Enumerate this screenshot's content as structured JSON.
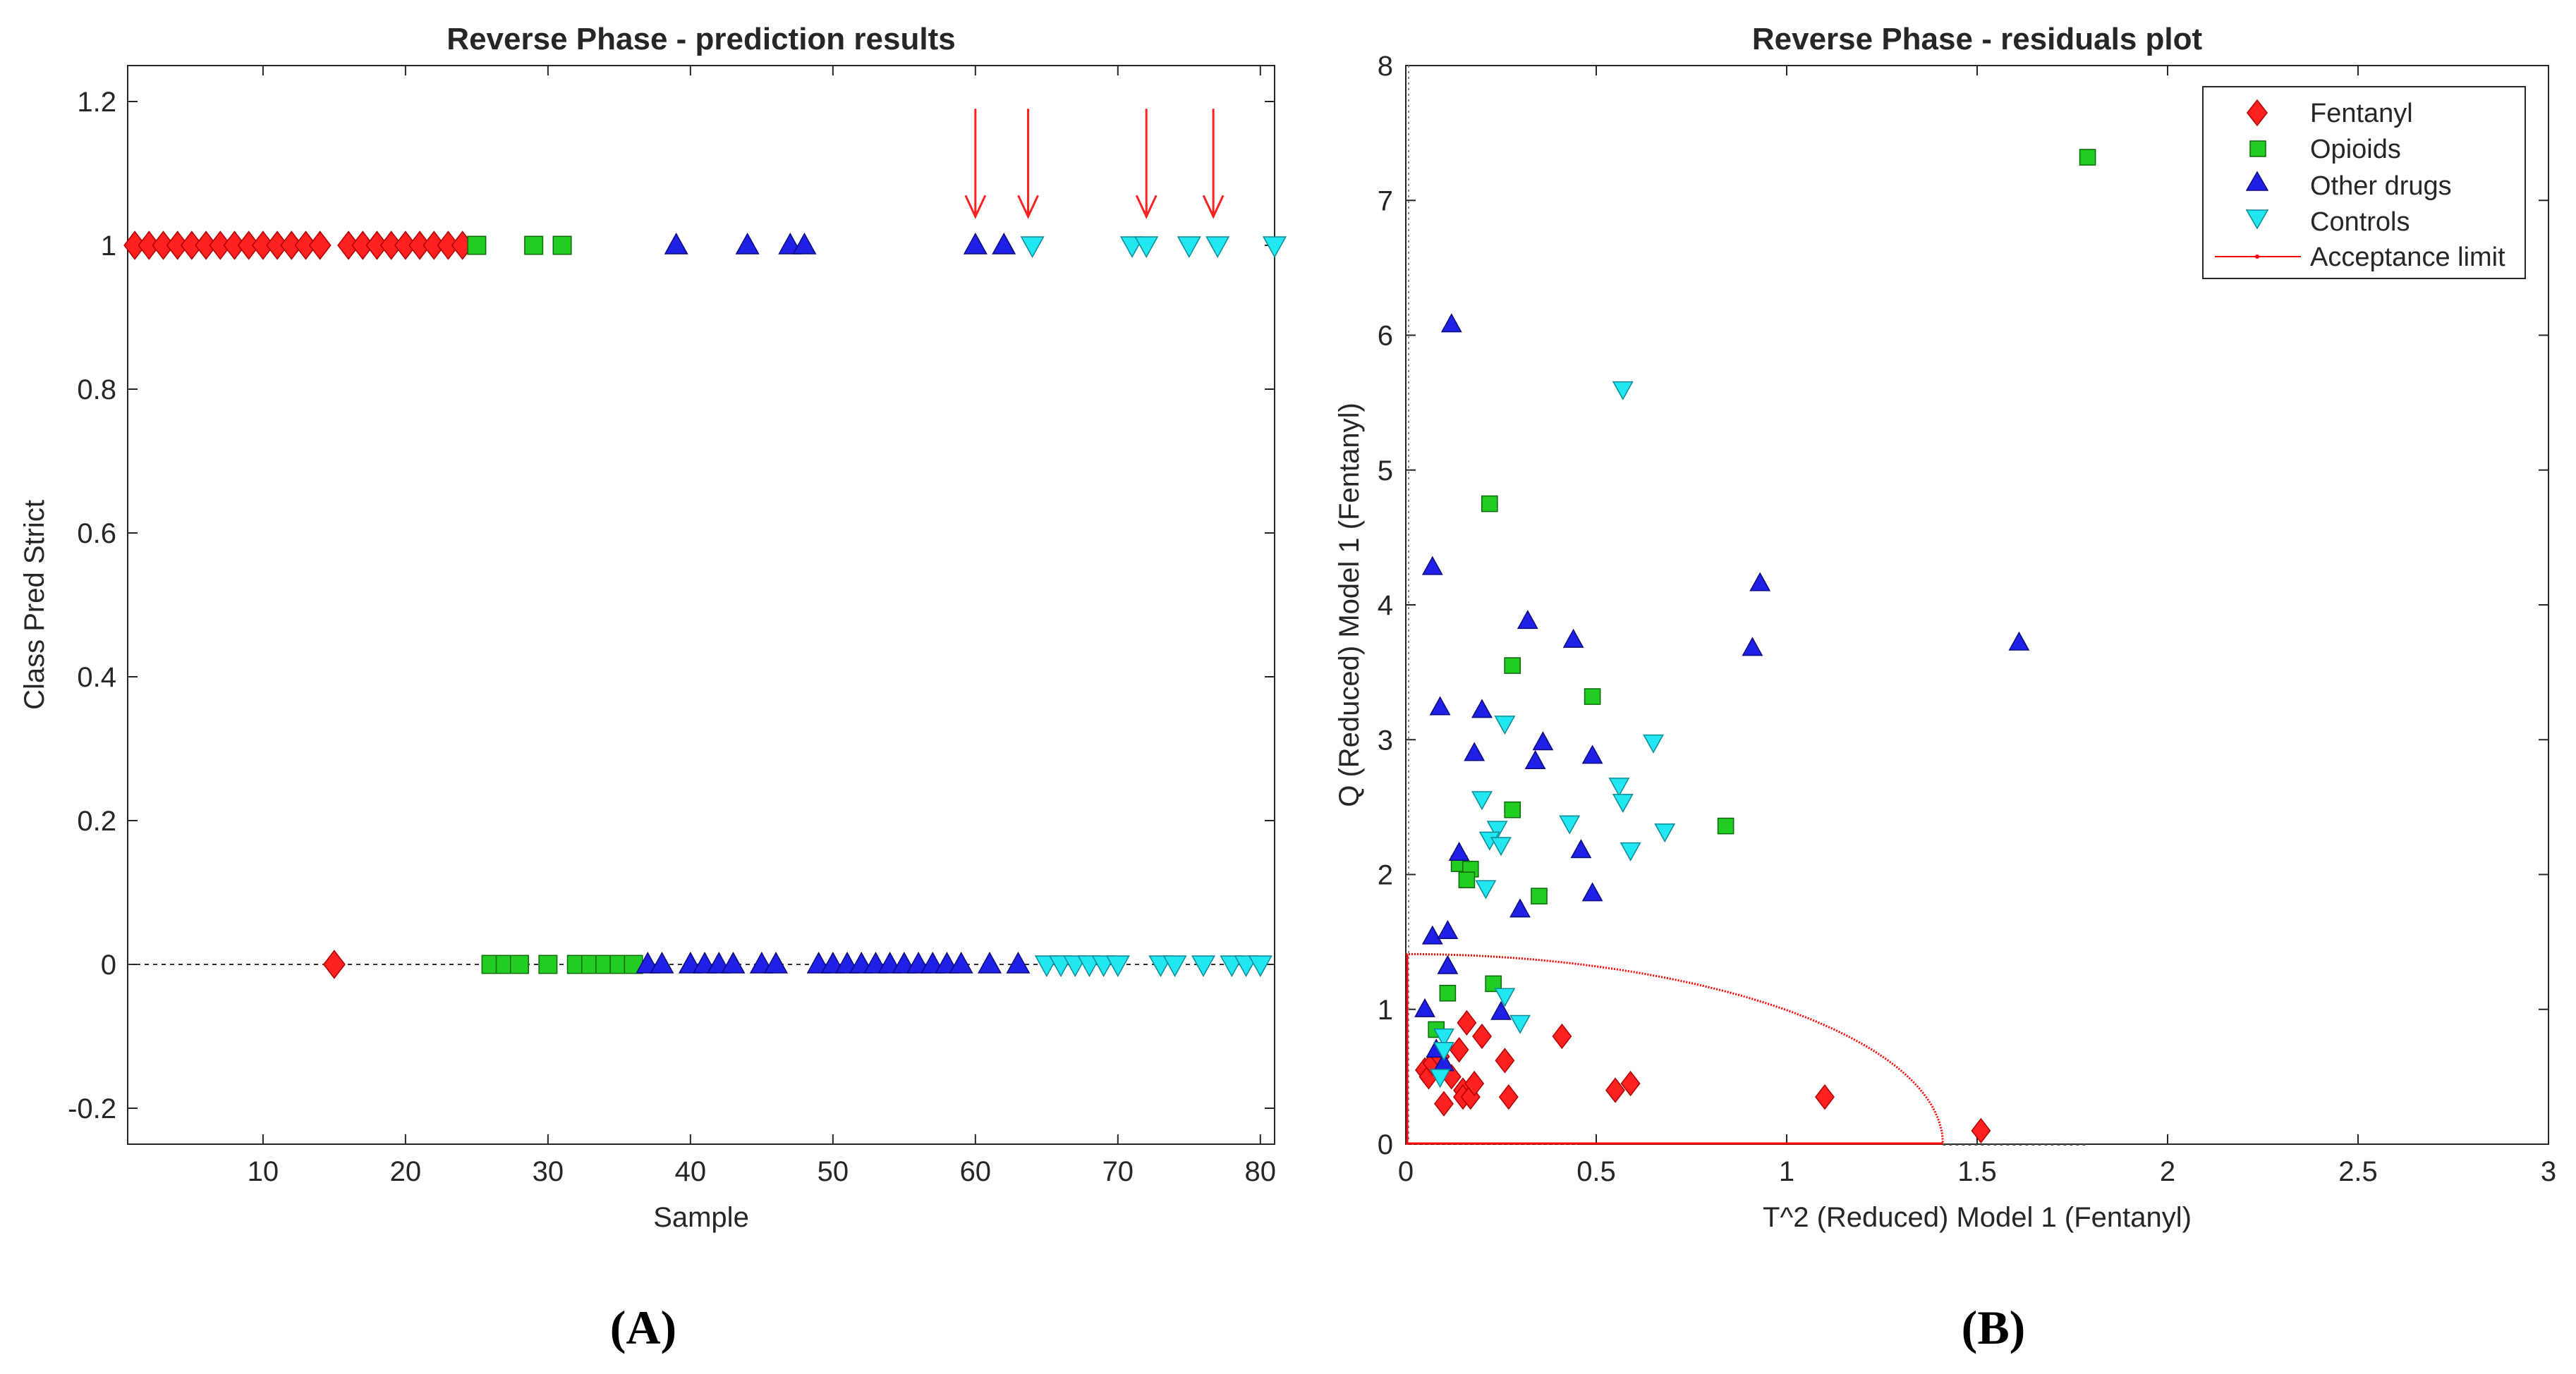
{
  "chart_data": [
    {
      "type": "scatter",
      "title": "Reverse Phase - prediction results",
      "xlabel": "Sample",
      "ylabel": "Class Pred Strict",
      "xlim": [
        0.5,
        81
      ],
      "ylim": [
        -0.25,
        1.25
      ],
      "xticks": [
        10,
        20,
        30,
        40,
        50,
        60,
        70,
        80
      ],
      "yticks": [
        -0.2,
        0,
        0.2,
        0.4,
        0.6,
        0.8,
        1,
        1.2
      ],
      "ytick_labels": [
        "-0.2",
        "0",
        "0.2",
        "0.4",
        "0.6",
        "0.8",
        "1",
        "1.2"
      ],
      "reference_line_y": 0,
      "arrows_at_samples": [
        60,
        63.7,
        72,
        76.7
      ],
      "series": [
        {
          "name": "Fentanyl",
          "marker": "diamond",
          "color": "#ff2020",
          "x": [
            1,
            2,
            3,
            4,
            5,
            6,
            7,
            8,
            9,
            10,
            11,
            12,
            13,
            14,
            15,
            16,
            17,
            18,
            19,
            20,
            21,
            22,
            23,
            24
          ],
          "y": [
            1,
            1,
            1,
            1,
            1,
            1,
            1,
            1,
            1,
            1,
            1,
            1,
            1,
            1,
            0,
            1,
            1,
            1,
            1,
            1,
            1,
            1,
            1,
            1
          ]
        },
        {
          "name": "Opioids",
          "marker": "square",
          "color": "#22cc22",
          "x": [
            25,
            26,
            27,
            28,
            29,
            30,
            31,
            32,
            33,
            34,
            35,
            36
          ],
          "y": [
            1,
            0,
            0,
            0,
            1,
            0,
            1,
            0,
            0,
            0,
            0,
            0
          ]
        },
        {
          "name": "Other drugs",
          "marker": "triangle-up",
          "color": "#1f1fe6",
          "x": [
            37,
            38,
            39,
            40,
            41,
            42,
            43,
            44,
            45,
            46,
            47,
            48,
            49,
            50,
            51,
            52,
            53,
            54,
            55,
            56,
            57,
            58,
            59,
            60,
            61,
            62,
            63
          ],
          "y": [
            0,
            0,
            1,
            0,
            0,
            0,
            0,
            1,
            0,
            0,
            1,
            1,
            0,
            0,
            0,
            0,
            0,
            0,
            0,
            0,
            0,
            0,
            0,
            1,
            0,
            1,
            0
          ]
        },
        {
          "name": "Controls",
          "marker": "triangle-down",
          "color": "#22e6f2",
          "x": [
            64,
            65,
            66,
            67,
            68,
            69,
            70,
            71,
            72,
            73,
            74,
            75,
            76,
            77,
            78,
            79,
            80,
            81
          ],
          "y": [
            1,
            0,
            0,
            0,
            0,
            0,
            0,
            1,
            1,
            0,
            0,
            1,
            0,
            1,
            0,
            0,
            0,
            1
          ]
        }
      ]
    },
    {
      "type": "scatter",
      "title": "Reverse Phase - residuals plot",
      "xlabel": "T^2 (Reduced) Model 1 (Fentanyl)",
      "ylabel": "Q (Reduced) Model 1 (Fentanyl)",
      "xlim": [
        0,
        3
      ],
      "ylim": [
        0,
        8
      ],
      "xticks": [
        0,
        0.5,
        1,
        1.5,
        2,
        2.5,
        3
      ],
      "xtick_labels": [
        "0",
        "0.5",
        "1",
        "1.5",
        "2",
        "2.5",
        "3"
      ],
      "yticks": [
        0,
        1,
        2,
        3,
        4,
        5,
        6,
        7,
        8
      ],
      "legend_position": "top-right",
      "acceptance_limit": {
        "name": "Acceptance limit",
        "color": "#ff0000",
        "x_max": 1.41,
        "y_max": 1.41
      },
      "series": [
        {
          "name": "Fentanyl",
          "marker": "diamond",
          "color": "#ff2020",
          "x": [
            0.05,
            0.06,
            0.07,
            0.1,
            0.12,
            0.14,
            0.15,
            0.15,
            0.16,
            0.17,
            0.18,
            0.2,
            0.26,
            0.27,
            0.41,
            0.55,
            0.59,
            1.1,
            1.51,
            0.09
          ],
          "y": [
            0.55,
            0.5,
            0.6,
            0.3,
            0.5,
            0.7,
            0.4,
            0.35,
            0.9,
            0.35,
            0.45,
            0.8,
            0.62,
            0.35,
            0.8,
            0.4,
            0.45,
            0.35,
            0.1,
            0.65
          ]
        },
        {
          "name": "Opioids",
          "marker": "square",
          "color": "#22cc22",
          "x": [
            1.79,
            0.22,
            0.28,
            0.49,
            0.28,
            0.14,
            0.17,
            0.16,
            0.35,
            0.84,
            0.23,
            0.11,
            0.08
          ],
          "y": [
            7.32,
            4.75,
            3.55,
            3.32,
            2.48,
            2.08,
            2.04,
            1.96,
            1.84,
            2.36,
            1.19,
            1.12,
            0.85
          ]
        },
        {
          "name": "Other drugs",
          "marker": "triangle-up",
          "color": "#1f1fe6",
          "x": [
            0.12,
            0.07,
            0.93,
            1.61,
            0.32,
            0.44,
            0.91,
            0.09,
            0.2,
            0.36,
            0.18,
            0.34,
            0.49,
            0.14,
            0.46,
            0.3,
            0.49,
            0.07,
            0.11,
            0.11,
            0.05,
            0.25,
            0.08,
            0.1
          ],
          "y": [
            6.08,
            4.28,
            4.16,
            3.72,
            3.88,
            3.74,
            3.68,
            3.24,
            3.22,
            2.98,
            2.9,
            2.84,
            2.88,
            2.16,
            2.18,
            1.74,
            1.86,
            1.54,
            1.58,
            1.32,
            1.0,
            0.98,
            0.7,
            0.6
          ]
        },
        {
          "name": "Controls",
          "marker": "triangle-down",
          "color": "#22e6f2",
          "x": [
            0.57,
            0.65,
            0.26,
            0.56,
            0.57,
            0.2,
            0.43,
            0.24,
            0.22,
            0.25,
            0.68,
            0.59,
            0.21,
            0.26,
            0.3,
            0.1,
            0.09,
            0.1
          ],
          "y": [
            5.6,
            2.98,
            3.12,
            2.66,
            2.54,
            2.56,
            2.38,
            2.34,
            2.26,
            2.22,
            2.32,
            2.18,
            1.9,
            1.1,
            0.9,
            0.8,
            0.5,
            0.7
          ]
        }
      ]
    }
  ],
  "panels": {
    "left": "(A)",
    "right": "(B)"
  },
  "legend": {
    "fentanyl": "Fentanyl",
    "opioids": "Opioids",
    "other": "Other drugs",
    "controls": "Controls",
    "limit": "Acceptance limit"
  }
}
